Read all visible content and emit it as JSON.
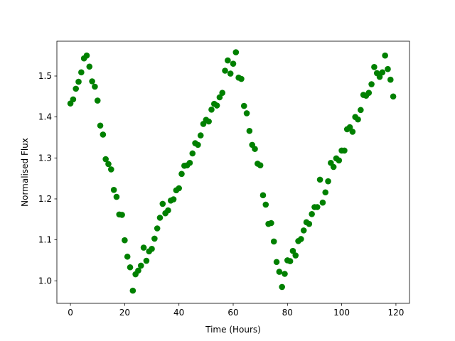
{
  "chart_data": {
    "type": "scatter",
    "title": "",
    "xlabel": "Time (Hours)",
    "ylabel": "Normalised Flux",
    "xlim": [
      -5,
      125
    ],
    "ylim": [
      0.945,
      1.585
    ],
    "xticks": [
      0,
      20,
      40,
      60,
      80,
      100,
      120
    ],
    "yticks": [
      1.0,
      1.1,
      1.2,
      1.3,
      1.4,
      1.5
    ],
    "ytick_labels": [
      "1.0",
      "1.1",
      "1.2",
      "1.3",
      "1.4",
      "1.5"
    ],
    "grid": false,
    "legend": "none",
    "marker_color": "#008000",
    "series": [
      {
        "x": [
          0,
          1,
          2,
          3,
          4,
          5,
          6,
          7,
          8,
          9,
          10,
          11,
          12,
          13,
          14,
          15,
          16,
          17,
          18,
          19,
          20,
          21,
          22,
          23,
          24,
          25,
          26,
          27,
          28,
          29,
          30,
          31,
          32,
          33,
          34,
          35,
          36,
          37,
          38,
          39,
          40,
          41,
          42,
          43,
          44,
          45,
          46,
          47,
          48,
          49,
          50,
          51,
          52,
          53,
          54,
          55,
          56,
          57,
          58,
          59,
          60,
          61,
          62,
          63,
          64,
          65,
          66,
          67,
          68,
          69,
          70,
          71,
          72,
          73,
          74,
          75,
          76,
          77,
          78,
          79,
          80,
          81,
          82,
          83,
          84,
          85,
          86,
          87,
          88,
          89,
          90,
          91,
          92,
          93,
          94,
          95,
          96,
          97,
          98,
          99,
          100,
          101,
          102,
          103,
          104,
          105,
          106,
          107,
          108,
          109,
          110,
          111,
          112,
          113,
          114,
          115,
          116,
          117,
          118,
          119
        ],
        "y": [
          1.433,
          1.443,
          1.469,
          1.486,
          1.509,
          1.543,
          1.55,
          1.523,
          1.487,
          1.474,
          1.44,
          1.379,
          1.357,
          1.297,
          1.285,
          1.272,
          1.222,
          1.205,
          1.162,
          1.161,
          1.099,
          1.059,
          1.033,
          0.976,
          1.016,
          1.025,
          1.037,
          1.081,
          1.049,
          1.072,
          1.078,
          1.103,
          1.128,
          1.154,
          1.188,
          1.165,
          1.172,
          1.196,
          1.199,
          1.221,
          1.226,
          1.261,
          1.281,
          1.282,
          1.288,
          1.311,
          1.336,
          1.332,
          1.355,
          1.383,
          1.393,
          1.389,
          1.418,
          1.432,
          1.428,
          1.448,
          1.459,
          1.513,
          1.538,
          1.506,
          1.53,
          1.558,
          1.496,
          1.493,
          1.427,
          1.409,
          1.366,
          1.332,
          1.322,
          1.286,
          1.282,
          1.209,
          1.186,
          1.139,
          1.141,
          1.096,
          1.046,
          1.022,
          0.985,
          1.017,
          1.05,
          1.048,
          1.073,
          1.062,
          1.097,
          1.102,
          1.123,
          1.143,
          1.139,
          1.163,
          1.18,
          1.18,
          1.247,
          1.191,
          1.216,
          1.243,
          1.288,
          1.278,
          1.299,
          1.294,
          1.318,
          1.318,
          1.37,
          1.375,
          1.364,
          1.4,
          1.394,
          1.417,
          1.454,
          1.452,
          1.459,
          1.48,
          1.522,
          1.507,
          1.498,
          1.509,
          1.55,
          1.517,
          1.491,
          1.45
        ]
      }
    ]
  }
}
